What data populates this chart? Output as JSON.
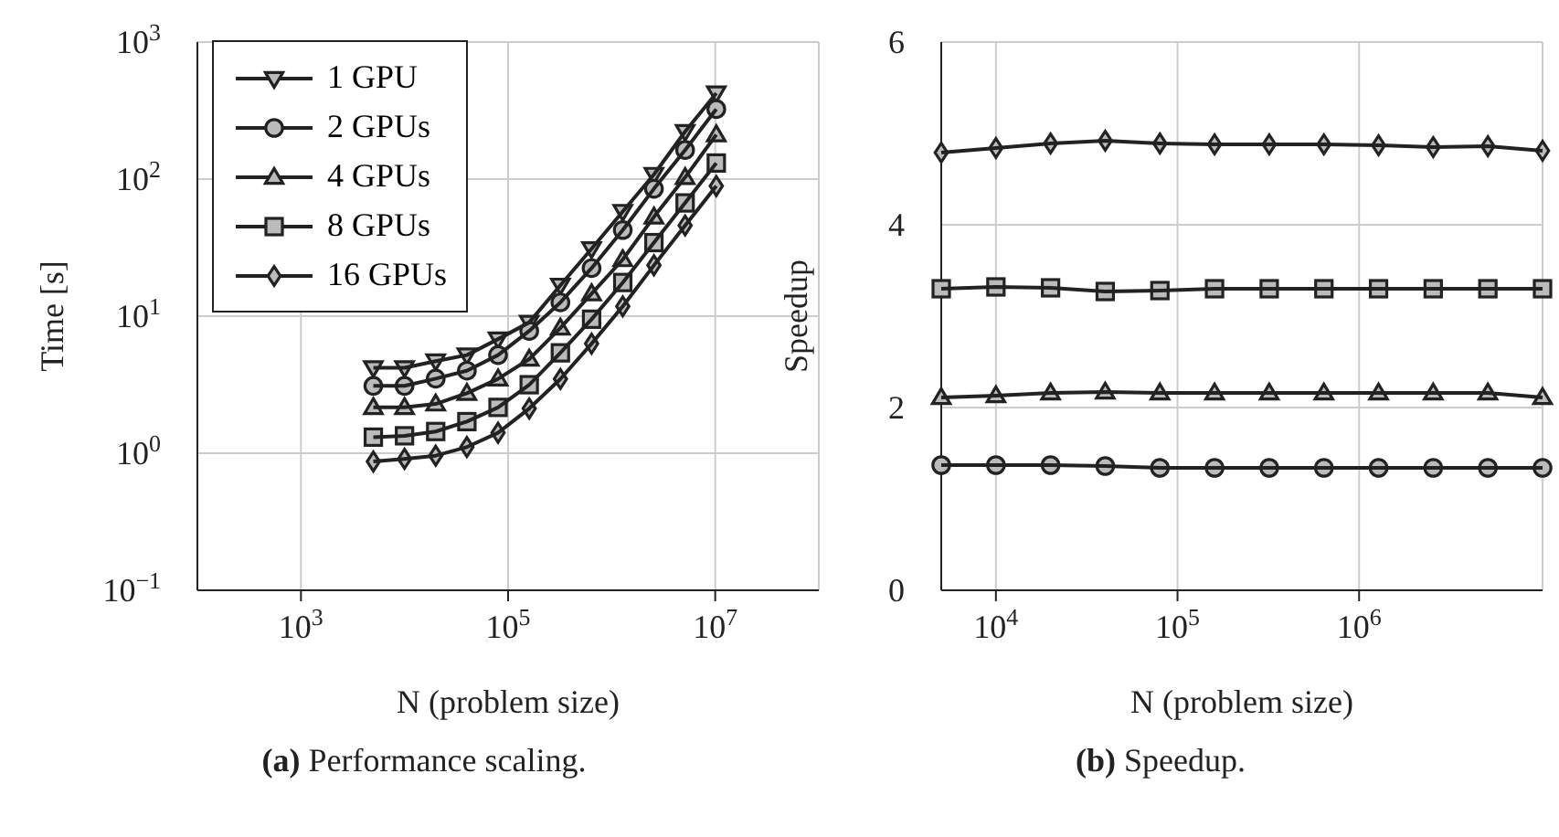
{
  "chart_data": [
    {
      "type": "line",
      "title": "(a) Performance scaling.",
      "xlabel": "N (problem size)",
      "ylabel": "Time [s]",
      "log": "xy",
      "grid": true,
      "legend": "top left",
      "xlim": [
        100,
        100000000
      ],
      "xticks": [
        {
          "value": 1000,
          "label": "10$^{3}$"
        },
        {
          "value": 100000,
          "label": "10$^{5}$"
        },
        {
          "value": 10000000,
          "label": "10$^{7}$"
        }
      ],
      "ylim": [
        0.1,
        1000
      ],
      "yticks": [
        {
          "value": 0.1,
          "label": "10$^{−1}$"
        },
        {
          "value": 1,
          "label": "10$^{0}$"
        },
        {
          "value": 10,
          "label": "10$^{1}$"
        },
        {
          "value": 100,
          "label": "10$^{2}$"
        },
        {
          "value": 1000,
          "label": "10$^{3}$"
        }
      ],
      "x": [
        5000,
        10000,
        20000,
        40000,
        80000,
        160000,
        320000,
        640000,
        1280000,
        2560000,
        5120000,
        10240000
      ],
      "series": [
        {
          "name": "1 GPU",
          "color": "#222222",
          "marker": "triangle-down",
          "values": [
            4.2,
            4.2,
            4.7,
            5.2,
            6.8,
            9.0,
            16.8,
            31,
            58,
            108,
            222,
            424
          ]
        },
        {
          "name": "2 GPUs",
          "color": "#222222",
          "marker": "circle",
          "values": [
            3.1,
            3.1,
            3.5,
            4.0,
            5.2,
            7.8,
            12.6,
            22.4,
            42.5,
            85,
            163,
            324
          ]
        },
        {
          "name": "4 GPUs",
          "color": "#222222",
          "marker": "triangle",
          "values": [
            2.16,
            2.16,
            2.29,
            2.74,
            3.49,
            4.86,
            8.2,
            14.6,
            25.9,
            53,
            103,
            211
          ]
        },
        {
          "name": "8 GPUs",
          "color": "#222222",
          "marker": "square",
          "values": [
            1.31,
            1.34,
            1.44,
            1.7,
            2.16,
            3.16,
            5.4,
            9.5,
            17.6,
            34.4,
            67,
            131
          ]
        },
        {
          "name": "16 GPUs",
          "color": "#222222",
          "marker": "diamond",
          "values": [
            0.87,
            0.91,
            0.96,
            1.11,
            1.41,
            2.12,
            3.48,
            6.3,
            11.8,
            23.5,
            45.9,
            89
          ]
        }
      ]
    },
    {
      "type": "line",
      "title": "(b) Speedup.",
      "xlabel": "N (problem size)",
      "ylabel": "Speedup",
      "log": "x",
      "grid": true,
      "xlim": [
        5000,
        10240000
      ],
      "xticks": [
        {
          "value": 10000,
          "label": "10$^{4}$"
        },
        {
          "value": 100000,
          "label": "10$^{5}$"
        },
        {
          "value": 1000000,
          "label": "10$^{6}$"
        }
      ],
      "ylim": [
        0,
        6
      ],
      "yticks": [
        0,
        2,
        4,
        6
      ],
      "x": [
        5000,
        10000,
        20000,
        40000,
        80000,
        160000,
        320000,
        640000,
        1280000,
        2560000,
        5120000,
        10240000
      ],
      "series": [
        {
          "color": "#222222",
          "marker": "circle",
          "values": [
            1.37,
            1.37,
            1.37,
            1.36,
            1.34,
            1.34,
            1.34,
            1.34,
            1.34,
            1.34,
            1.34,
            1.34
          ]
        },
        {
          "color": "#222222",
          "marker": "triangle",
          "values": [
            2.11,
            2.13,
            2.16,
            2.17,
            2.16,
            2.16,
            2.16,
            2.16,
            2.16,
            2.16,
            2.16,
            2.11
          ]
        },
        {
          "color": "#222222",
          "marker": "square",
          "values": [
            3.3,
            3.32,
            3.31,
            3.27,
            3.28,
            3.3,
            3.3,
            3.3,
            3.3,
            3.3,
            3.3,
            3.3
          ]
        },
        {
          "color": "#222222",
          "marker": "diamond",
          "values": [
            4.79,
            4.84,
            4.89,
            4.92,
            4.89,
            4.88,
            4.88,
            4.88,
            4.87,
            4.85,
            4.86,
            4.81
          ]
        }
      ]
    }
  ]
}
